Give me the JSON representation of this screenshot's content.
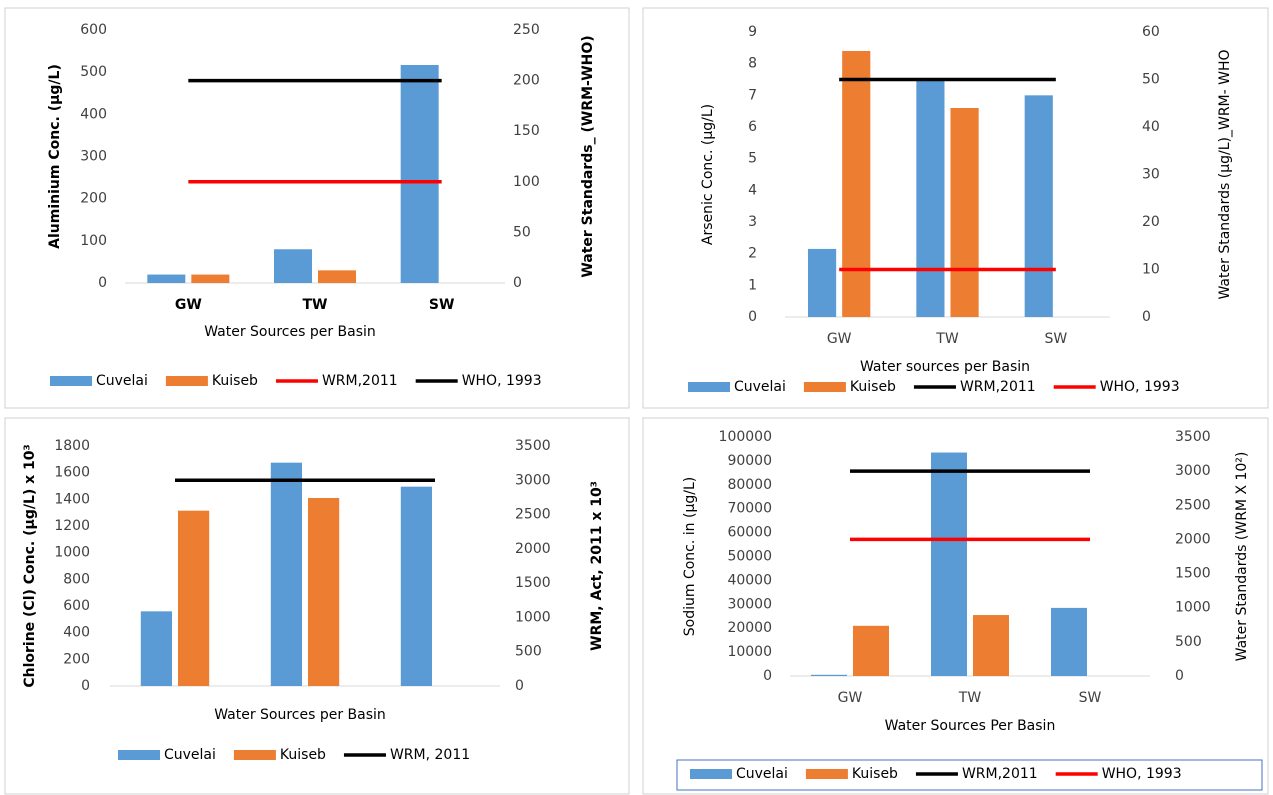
{
  "chart_data": [
    {
      "type": "bar",
      "y_label": "Aluminium Conc. (µg/L)",
      "y2_label": "Water Standards_ (WRM-WHO)",
      "x_label": "Water Sources per Basin",
      "categories": [
        "GW",
        "TW",
        "SW"
      ],
      "series": [
        {
          "name": "Cuvelai",
          "color": "#5b9bd5",
          "values": [
            20,
            80,
            517
          ]
        },
        {
          "name": "Kuiseb",
          "color": "#ed7d31",
          "values": [
            20,
            30,
            null
          ]
        },
        {
          "name": "WRM,2011",
          "color": "#ff0000",
          "axis": "y2",
          "values": [
            100,
            100,
            100
          ]
        },
        {
          "name": "WHO, 1993",
          "color": "#000000",
          "axis": "y2",
          "values": [
            200,
            200,
            200
          ]
        }
      ],
      "ylim": [
        0,
        600
      ],
      "yticks": [
        0,
        100,
        200,
        300,
        400,
        500,
        600
      ],
      "y2lim": [
        0,
        250
      ],
      "y2ticks": [
        0,
        50,
        100,
        150,
        200,
        250
      ],
      "grid": false
    },
    {
      "type": "bar",
      "y_label": "Arsenic Conc. (µg/L)",
      "y2_label": "Water Standards (µg/L)_WRM- WHO",
      "x_label": "Water sources per Basin",
      "categories": [
        "GW",
        "TW",
        "SW"
      ],
      "series": [
        {
          "name": "Cuvelai",
          "color": "#5b9bd5",
          "values": [
            2.15,
            7.5,
            7.0
          ]
        },
        {
          "name": "Kuiseb",
          "color": "#ed7d31",
          "values": [
            8.4,
            6.6,
            null
          ]
        },
        {
          "name": "WRM,2011",
          "color": "#000000",
          "axis": "y2",
          "values": [
            50,
            50,
            50
          ]
        },
        {
          "name": "WHO, 1993",
          "color": "#ff0000",
          "axis": "y2",
          "values": [
            10,
            10,
            10
          ]
        }
      ],
      "ylim": [
        0,
        9
      ],
      "yticks": [
        0,
        1,
        2,
        3,
        4,
        5,
        6,
        7,
        8,
        9
      ],
      "y2lim": [
        0,
        60
      ],
      "y2ticks": [
        0,
        10,
        20,
        30,
        40,
        50,
        60
      ],
      "grid": false
    },
    {
      "type": "bar",
      "y_label": "Chlorine (Cl) Conc. (µg/L) x 10³",
      "y2_label": "WRM, Act, 2011 x 10³",
      "x_label": "Water Sources per Basin",
      "categories": [
        null,
        null,
        null
      ],
      "series": [
        {
          "name": "Cuvelai",
          "color": "#5b9bd5",
          "values": [
            560,
            1675,
            1495
          ]
        },
        {
          "name": "Kuiseb",
          "color": "#ed7d31",
          "values": [
            1315,
            1410,
            null
          ]
        },
        {
          "name": "WRM, 2011",
          "color": "#000000",
          "axis": "y2",
          "values": [
            3000,
            3000,
            3000
          ]
        }
      ],
      "ylim": [
        0,
        1800
      ],
      "yticks": [
        0,
        200,
        400,
        600,
        800,
        1000,
        1200,
        1400,
        1600,
        1800
      ],
      "y2lim": [
        0,
        3500
      ],
      "y2ticks": [
        0,
        500,
        1000,
        1500,
        2000,
        2500,
        3000,
        3500
      ],
      "grid": false
    },
    {
      "type": "bar",
      "y_label": "Sodium Conc. in (µg/L)",
      "y2_label": "Water Standards (WRM X 10²)",
      "x_label": "Water Sources Per Basin",
      "categories": [
        "GW",
        "TW",
        "SW"
      ],
      "series": [
        {
          "name": "Cuvelai",
          "color": "#5b9bd5",
          "values": [
            500,
            93500,
            28500
          ]
        },
        {
          "name": "Kuiseb",
          "color": "#ed7d31",
          "values": [
            21000,
            25500,
            null
          ]
        },
        {
          "name": "WRM,2011",
          "color": "#000000",
          "axis": "y2",
          "values": [
            3000,
            3000,
            3000
          ]
        },
        {
          "name": "WHO, 1993",
          "color": "#ff0000",
          "axis": "y2",
          "values": [
            2000,
            2000,
            2000
          ]
        }
      ],
      "ylim": [
        0,
        100000
      ],
      "yticks": [
        0,
        10000,
        20000,
        30000,
        40000,
        50000,
        60000,
        70000,
        80000,
        90000,
        100000
      ],
      "y2lim": [
        0,
        3500
      ],
      "y2ticks": [
        0,
        500,
        1000,
        1500,
        2000,
        2500,
        3000,
        3500
      ],
      "grid": false
    }
  ]
}
